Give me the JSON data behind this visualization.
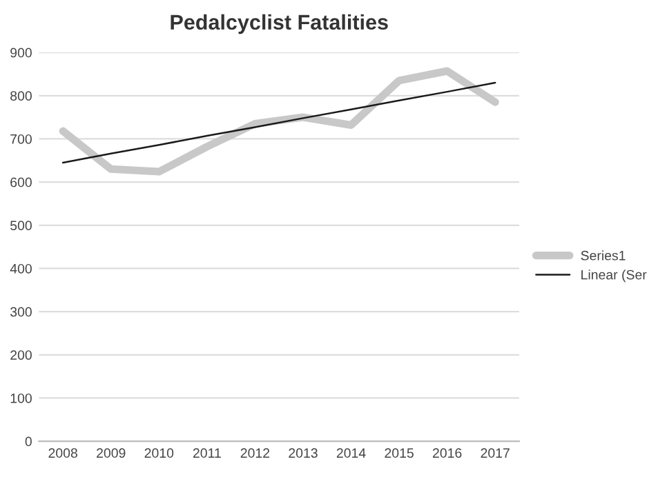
{
  "chart_data": {
    "type": "line",
    "title": "Pedalcyclist Fatalities",
    "categories": [
      "2008",
      "2009",
      "2010",
      "2011",
      "2012",
      "2013",
      "2014",
      "2015",
      "2016",
      "2017"
    ],
    "series": [
      {
        "name": "Series1",
        "color": "#c8c8c8",
        "values": [
          718,
          630,
          624,
          682,
          735,
          750,
          732,
          835,
          857,
          785
        ]
      },
      {
        "name": "Linear (Ser",
        "color": "#1a1a1a",
        "values": [
          645,
          666,
          686,
          707,
          727,
          748,
          768,
          789,
          809,
          830
        ]
      }
    ],
    "ylim": [
      0,
      900
    ],
    "yticks": [
      0,
      100,
      200,
      300,
      400,
      500,
      600,
      700,
      800,
      900
    ],
    "grid": "y",
    "legend": "right",
    "marker": "none",
    "line_style": "solid"
  }
}
